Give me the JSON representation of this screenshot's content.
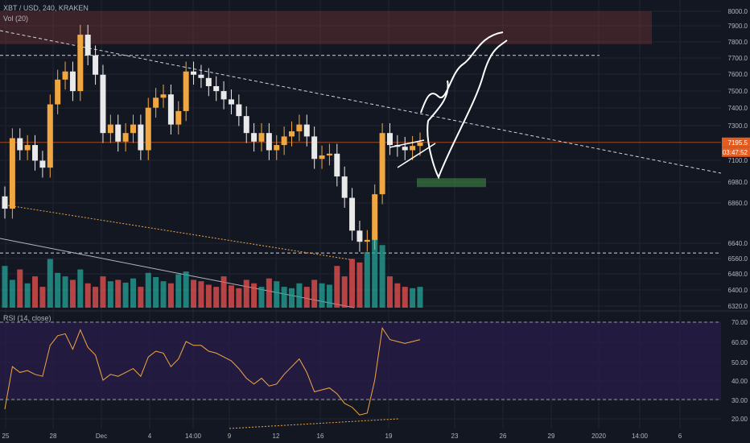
{
  "header": {
    "symbol_line": "XBT / USD, 240, KRAKEN",
    "volume_label": "Vol (20)",
    "rsi_label": "RSI (14, close)"
  },
  "price_tags": {
    "last_price": "7195.5",
    "countdown": "03:47:52"
  },
  "colors": {
    "background": "#131722",
    "grid": "#1f2433",
    "up": "#f0a742",
    "down": "#e9e9e9",
    "vol_up": "#26a69a",
    "vol_down": "#ef5350",
    "rsi_line": "#f0a742",
    "rsi_band": "#2a1e4a",
    "accent": "#e65c1e"
  },
  "chart_data": [
    {
      "type": "candlestick",
      "title": "XBT / USD, 240, KRAKEN",
      "x_tick_labels": [
        "25",
        "28",
        "Dec",
        "4",
        "14:00",
        "9",
        "12",
        "16",
        "19",
        "23",
        "26",
        "29",
        "2020",
        "14:00",
        "6"
      ],
      "y_tick_labels": [
        "8000.0",
        "7900.0",
        "7800.0",
        "7700.0",
        "7600.0",
        "7500.0",
        "7400.0",
        "7300.0",
        "7100.0",
        "6980.0",
        "6860.0",
        "6640.0",
        "6560.0",
        "6480.0",
        "6400.0",
        "6320.0"
      ],
      "ylim": [
        6320,
        8000
      ],
      "scale": "log",
      "grid": true,
      "last_price": 7195.5,
      "close_series": [
        6820,
        7220,
        7150,
        7180,
        7090,
        7050,
        7420,
        7570,
        7620,
        7500,
        7850,
        7720,
        7600,
        7250,
        7300,
        7200,
        7250,
        7300,
        7150,
        7400,
        7460,
        7480,
        7300,
        7380,
        7620,
        7600,
        7580,
        7530,
        7500,
        7450,
        7420,
        7350,
        7250,
        7200,
        7250,
        7150,
        7180,
        7230,
        7260,
        7300,
        7230,
        7100,
        7120,
        7130,
        7000,
        6880,
        6700,
        6640,
        6650,
        6900,
        7250,
        7180,
        7170,
        7150,
        7175,
        7195.5
      ],
      "annotations": [
        "resistance zone 7790-8000",
        "support zone 6940-6990",
        "descending trendline",
        "horizontal level 7720",
        "horizontal level 6580",
        "hand-drawn projected path"
      ]
    },
    {
      "type": "bar",
      "title": "Vol (20)",
      "values": [
        60,
        40,
        55,
        35,
        45,
        30,
        70,
        50,
        45,
        40,
        55,
        35,
        30,
        45,
        38,
        40,
        36,
        42,
        30,
        50,
        44,
        38,
        35,
        48,
        52,
        40,
        38,
        33,
        30,
        45,
        32,
        28,
        40,
        35,
        30,
        42,
        38,
        30,
        28,
        35,
        30,
        40,
        35,
        33,
        60,
        45,
        70,
        65,
        80,
        110,
        90,
        45,
        35,
        30,
        28,
        30
      ]
    },
    {
      "type": "line",
      "title": "RSI (14, close)",
      "y_tick_labels": [
        "70.00",
        "60.00",
        "50.00",
        "40.00",
        "30.00",
        "20.00"
      ],
      "ylim": [
        18,
        72
      ],
      "bands": [
        30,
        70
      ],
      "values": [
        25,
        47,
        44,
        45,
        43,
        42,
        58,
        63,
        64,
        56,
        66,
        57,
        53,
        40,
        43,
        42,
        44,
        46,
        42,
        52,
        55,
        54,
        47,
        51,
        60,
        58,
        58,
        55,
        54,
        52,
        50,
        46,
        41,
        38,
        41,
        37,
        38,
        43,
        47,
        51,
        44,
        34,
        35,
        36,
        33,
        28,
        26,
        22,
        23,
        40,
        67,
        61,
        60,
        59,
        60,
        61
      ]
    }
  ]
}
